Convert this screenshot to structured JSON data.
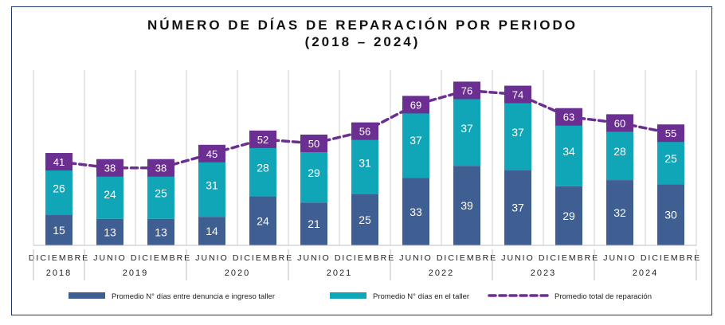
{
  "chart_data": {
    "type": "bar",
    "title": "NÚMERO DE DÍAS DE REPARACIÓN POR PERIODO",
    "subtitle": "(2018 – 2024)",
    "categories": [
      "DICIEMBRE",
      "JUNIO",
      "DICIEMBRE",
      "JUNIO",
      "DICIEMBRE",
      "JUNIO",
      "DICIEMBRE",
      "JUNIO",
      "DICIEMBRE",
      "JUNIO",
      "DICIEMBRE",
      "JUNIO",
      "DICIEMBRE"
    ],
    "years": [
      "2018",
      "2019",
      "2020",
      "2021",
      "2022",
      "2023",
      "2024"
    ],
    "series": [
      {
        "name": "Promedio N° días entre denuncia e ingreso taller",
        "type": "bar",
        "color": "#3f5e92",
        "values": [
          15,
          13,
          13,
          14,
          24,
          21,
          25,
          33,
          39,
          37,
          29,
          32,
          30
        ]
      },
      {
        "name": "Promedio N° días en el taller",
        "type": "bar",
        "color": "#10a6b8",
        "values": [
          26,
          24,
          25,
          31,
          28,
          29,
          31,
          37,
          37,
          37,
          34,
          28,
          25
        ]
      },
      {
        "name": "Promedio total de reparación",
        "type": "line",
        "color": "#6b2f91",
        "values": [
          41,
          38,
          38,
          45,
          52,
          50,
          56,
          69,
          76,
          74,
          63,
          60,
          55
        ]
      }
    ],
    "stacked": true,
    "ylim": [
      0,
      80
    ],
    "grid": true,
    "legend": "bottom"
  }
}
